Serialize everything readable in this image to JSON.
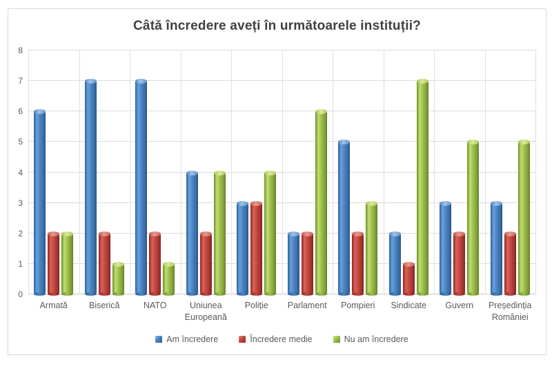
{
  "chart_data": {
    "type": "bar",
    "title": "Câtă încredere aveți în următoarele instituții?",
    "categories": [
      "Armată",
      "Biserică",
      "NATO",
      "Uniunea Europeană",
      "Poliție",
      "Parlament",
      "Pompieri",
      "Sindicate",
      "Guvern",
      "Președinția României"
    ],
    "series": [
      {
        "name": "Am încredere",
        "color": "#4a86c4",
        "values": [
          6,
          7,
          7,
          4,
          3,
          2,
          5,
          2,
          3,
          3
        ]
      },
      {
        "name": "Încredere medie",
        "color": "#c34a43",
        "values": [
          2,
          2,
          2,
          2,
          3,
          2,
          2,
          1,
          2,
          2
        ]
      },
      {
        "name": "Nu am încredere",
        "color": "#9fc04f",
        "values": [
          2,
          1,
          1,
          4,
          4,
          6,
          3,
          7,
          5,
          5
        ]
      }
    ],
    "xlabel": "",
    "ylabel": "",
    "ylim": [
      0,
      8
    ],
    "y_ticks": [
      0,
      1,
      2,
      3,
      4,
      5,
      6,
      7,
      8
    ],
    "grid": "horizontal-and-category-separators",
    "legend_position": "bottom"
  },
  "colors": {
    "title": "#404040",
    "axis_labels": "#595959",
    "gridline": "#dcdcdc",
    "frame_border": "#d8d8d8",
    "background": "#ffffff"
  }
}
